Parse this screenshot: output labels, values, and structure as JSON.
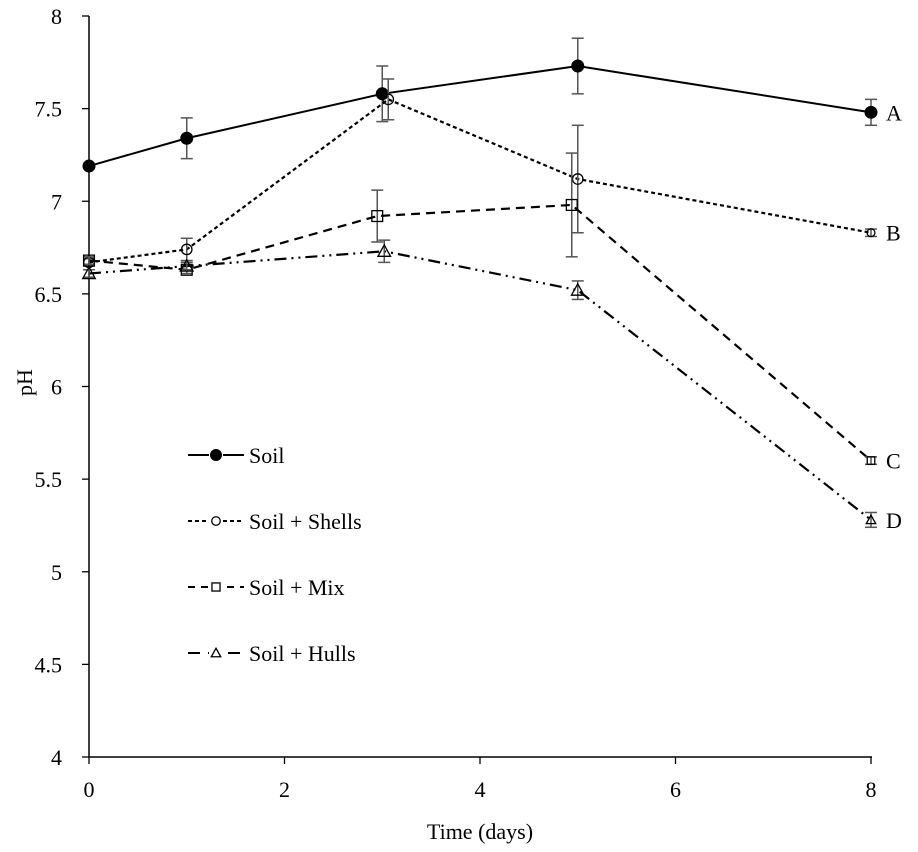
{
  "chart_data": {
    "type": "line",
    "title": "",
    "xlabel": "Time (days)",
    "ylabel": "pH",
    "xlim": [
      0,
      8
    ],
    "ylim": [
      4,
      8
    ],
    "xticks": [
      0,
      2,
      4,
      6,
      8
    ],
    "yticks": [
      4,
      4.5,
      5,
      5.5,
      6,
      6.5,
      7,
      7.5,
      8
    ],
    "ytick_labels": [
      "4",
      "4.5",
      "5",
      "5.5",
      "6",
      "6.5",
      "7",
      "7.5",
      "8"
    ],
    "xtick_labels": [
      "0",
      "2",
      "4",
      "6",
      "8"
    ],
    "grid": false,
    "legend_position": "center-left",
    "colors": {
      "line": "#000000",
      "error_bar": "#555555"
    },
    "series": [
      {
        "name": "Soil",
        "marker": "filled-circle",
        "dash": "solid",
        "end_label": "A",
        "x": [
          0,
          1,
          3,
          5,
          8
        ],
        "y": [
          7.19,
          7.34,
          7.58,
          7.73,
          7.48
        ],
        "err": [
          0.01,
          0.11,
          0.15,
          0.15,
          0.07
        ]
      },
      {
        "name": "Soil + Shells",
        "marker": "open-circle",
        "dash": "short-dash",
        "end_label": "B",
        "x": [
          0,
          1,
          3,
          5,
          8
        ],
        "y": [
          6.67,
          6.74,
          7.55,
          7.12,
          6.83
        ],
        "err": [
          0.02,
          0.06,
          0.11,
          0.29,
          0.02
        ]
      },
      {
        "name": "Soil + Mix",
        "marker": "open-square",
        "dash": "long-dash",
        "end_label": "C",
        "x": [
          0,
          1,
          3,
          5,
          8
        ],
        "y": [
          6.68,
          6.63,
          6.92,
          6.98,
          5.6
        ],
        "err": [
          0.02,
          0.02,
          0.14,
          0.28,
          0.02
        ]
      },
      {
        "name": "Soil + Hulls",
        "marker": "open-triangle",
        "dash": "dash-dot-dot",
        "end_label": "D",
        "x": [
          0,
          1,
          3,
          5,
          8
        ],
        "y": [
          6.61,
          6.65,
          6.73,
          6.52,
          5.28
        ],
        "err": [
          0.02,
          0.02,
          0.06,
          0.05,
          0.04
        ]
      }
    ]
  }
}
